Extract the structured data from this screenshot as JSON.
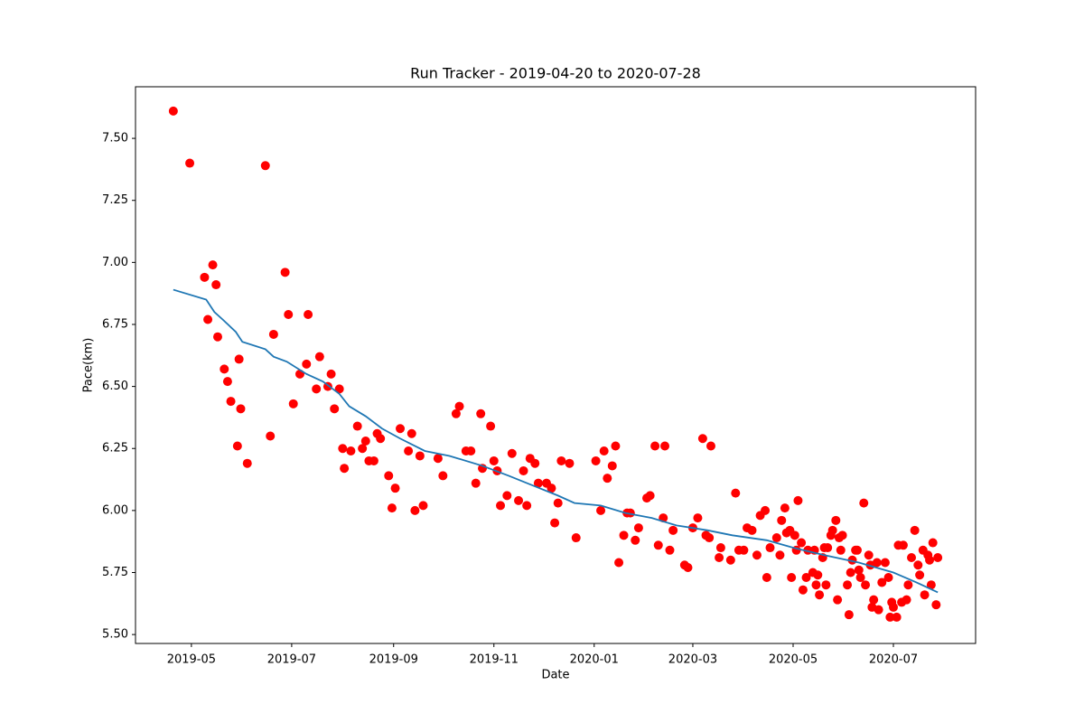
{
  "chart_data": {
    "type": "scatter",
    "title": "Run Tracker - 2019-04-20 to 2020-07-28",
    "x_label": "Date",
    "y_label": "Pace(km)",
    "xlim": [
      "2019-03-28",
      "2020-08-20"
    ],
    "xticks": [
      {
        "value": "2019-05-01",
        "label": "2019-05"
      },
      {
        "value": "2019-07-01",
        "label": "2019-07"
      },
      {
        "value": "2019-09-01",
        "label": "2019-09"
      },
      {
        "value": "2019-11-01",
        "label": "2019-11"
      },
      {
        "value": "2020-01-01",
        "label": "2020-01"
      },
      {
        "value": "2020-03-01",
        "label": "2020-03"
      },
      {
        "value": "2020-05-01",
        "label": "2020-05"
      },
      {
        "value": "2020-07-01",
        "label": "2020-07"
      }
    ],
    "ylim": [
      5.464,
      7.708
    ],
    "yticks": [
      {
        "value": 5.5,
        "label": "5.50"
      },
      {
        "value": 5.75,
        "label": "5.75"
      },
      {
        "value": 6.0,
        "label": "6.00"
      },
      {
        "value": 6.25,
        "label": "6.25"
      },
      {
        "value": 6.5,
        "label": "6.50"
      },
      {
        "value": 6.75,
        "label": "6.75"
      },
      {
        "value": 7.0,
        "label": "7.00"
      },
      {
        "value": 7.25,
        "label": "7.25"
      },
      {
        "value": 7.5,
        "label": "7.50"
      }
    ],
    "grid": false,
    "series": [
      {
        "type": "scatter",
        "color": "#ff0000",
        "x": [
          "2019-04-20",
          "2019-04-30",
          "2019-05-09",
          "2019-05-11",
          "2019-05-14",
          "2019-05-16",
          "2019-05-17",
          "2019-05-21",
          "2019-05-23",
          "2019-05-25",
          "2019-05-29",
          "2019-05-30",
          "2019-05-31",
          "2019-06-04",
          "2019-06-15",
          "2019-06-18",
          "2019-06-20",
          "2019-06-27",
          "2019-06-29",
          "2019-07-02",
          "2019-07-06",
          "2019-07-10",
          "2019-07-11",
          "2019-07-16",
          "2019-07-18",
          "2019-07-23",
          "2019-07-25",
          "2019-07-27",
          "2019-07-30",
          "2019-08-01",
          "2019-08-02",
          "2019-08-06",
          "2019-08-10",
          "2019-08-13",
          "2019-08-15",
          "2019-08-17",
          "2019-08-20",
          "2019-08-22",
          "2019-08-24",
          "2019-08-29",
          "2019-08-31",
          "2019-09-02",
          "2019-09-05",
          "2019-09-10",
          "2019-09-12",
          "2019-09-14",
          "2019-09-17",
          "2019-09-19",
          "2019-09-28",
          "2019-10-01",
          "2019-10-09",
          "2019-10-11",
          "2019-10-15",
          "2019-10-18",
          "2019-10-21",
          "2019-10-24",
          "2019-10-25",
          "2019-10-30",
          "2019-11-01",
          "2019-11-03",
          "2019-11-05",
          "2019-11-09",
          "2019-11-12",
          "2019-11-16",
          "2019-11-19",
          "2019-11-21",
          "2019-11-23",
          "2019-11-26",
          "2019-11-28",
          "2019-12-03",
          "2019-12-06",
          "2019-12-08",
          "2019-12-10",
          "2019-12-12",
          "2019-12-17",
          "2019-12-21",
          "2020-01-02",
          "2020-01-05",
          "2020-01-07",
          "2020-01-09",
          "2020-01-12",
          "2020-01-14",
          "2020-01-16",
          "2020-01-19",
          "2020-01-21",
          "2020-01-23",
          "2020-01-26",
          "2020-01-28",
          "2020-02-02",
          "2020-02-04",
          "2020-02-07",
          "2020-02-09",
          "2020-02-12",
          "2020-02-13",
          "2020-02-16",
          "2020-02-18",
          "2020-02-25",
          "2020-02-27",
          "2020-03-01",
          "2020-03-04",
          "2020-03-07",
          "2020-03-09",
          "2020-03-11",
          "2020-03-12",
          "2020-03-17",
          "2020-03-18",
          "2020-03-24",
          "2020-03-27",
          "2020-03-29",
          "2020-04-01",
          "2020-04-03",
          "2020-04-06",
          "2020-04-09",
          "2020-04-11",
          "2020-04-14",
          "2020-04-15",
          "2020-04-17",
          "2020-04-21",
          "2020-04-23",
          "2020-04-24",
          "2020-04-26",
          "2020-04-27",
          "2020-04-29",
          "2020-04-30",
          "2020-05-02",
          "2020-05-03",
          "2020-05-04",
          "2020-05-06",
          "2020-05-07",
          "2020-05-09",
          "2020-05-10",
          "2020-05-13",
          "2020-05-14",
          "2020-05-15",
          "2020-05-16",
          "2020-05-17",
          "2020-05-19",
          "2020-05-20",
          "2020-05-21",
          "2020-05-22",
          "2020-05-24",
          "2020-05-25",
          "2020-05-27",
          "2020-05-28",
          "2020-05-29",
          "2020-05-30",
          "2020-05-31",
          "2020-06-03",
          "2020-06-04",
          "2020-06-05",
          "2020-06-06",
          "2020-06-08",
          "2020-06-09",
          "2020-06-10",
          "2020-06-11",
          "2020-06-13",
          "2020-06-14",
          "2020-06-16",
          "2020-06-17",
          "2020-06-18",
          "2020-06-19",
          "2020-06-21",
          "2020-06-22",
          "2020-06-24",
          "2020-06-26",
          "2020-06-28",
          "2020-06-29",
          "2020-06-30",
          "2020-07-01",
          "2020-07-03",
          "2020-07-04",
          "2020-07-06",
          "2020-07-07",
          "2020-07-09",
          "2020-07-10",
          "2020-07-12",
          "2020-07-14",
          "2020-07-16",
          "2020-07-17",
          "2020-07-19",
          "2020-07-20",
          "2020-07-22",
          "2020-07-23",
          "2020-07-24",
          "2020-07-25",
          "2020-07-27",
          "2020-07-28"
        ],
        "values": [
          7.61,
          7.4,
          6.94,
          6.77,
          6.99,
          6.91,
          6.7,
          6.57,
          6.52,
          6.44,
          6.26,
          6.61,
          6.41,
          6.19,
          7.39,
          6.3,
          6.71,
          6.96,
          6.79,
          6.43,
          6.55,
          6.59,
          6.79,
          6.49,
          6.62,
          6.5,
          6.55,
          6.41,
          6.49,
          6.25,
          6.17,
          6.24,
          6.34,
          6.25,
          6.28,
          6.2,
          6.2,
          6.31,
          6.29,
          6.14,
          6.01,
          6.09,
          6.33,
          6.24,
          6.31,
          6.0,
          6.22,
          6.02,
          6.21,
          6.14,
          6.39,
          6.42,
          6.24,
          6.24,
          6.11,
          6.39,
          6.17,
          6.34,
          6.2,
          6.16,
          6.02,
          6.06,
          6.23,
          6.04,
          6.16,
          6.02,
          6.21,
          6.19,
          6.11,
          6.11,
          6.09,
          5.95,
          6.03,
          6.2,
          6.19,
          5.89,
          6.2,
          6.0,
          6.24,
          6.13,
          6.18,
          6.26,
          5.79,
          5.9,
          5.99,
          5.99,
          5.88,
          5.93,
          6.05,
          6.06,
          6.26,
          5.86,
          5.97,
          6.26,
          5.84,
          5.92,
          5.78,
          5.77,
          5.93,
          5.97,
          6.29,
          5.9,
          5.89,
          6.26,
          5.81,
          5.85,
          5.8,
          6.07,
          5.84,
          5.84,
          5.93,
          5.92,
          5.82,
          5.98,
          6.0,
          5.73,
          5.85,
          5.89,
          5.82,
          5.96,
          6.01,
          5.91,
          5.92,
          5.73,
          5.9,
          5.84,
          6.04,
          5.87,
          5.68,
          5.73,
          5.84,
          5.75,
          5.84,
          5.7,
          5.74,
          5.66,
          5.81,
          5.85,
          5.7,
          5.85,
          5.9,
          5.92,
          5.96,
          5.64,
          5.89,
          5.84,
          5.9,
          5.7,
          5.58,
          5.75,
          5.8,
          5.84,
          5.84,
          5.76,
          5.73,
          6.03,
          5.7,
          5.82,
          5.78,
          5.61,
          5.64,
          5.79,
          5.6,
          5.71,
          5.79,
          5.73,
          5.57,
          5.63,
          5.61,
          5.57,
          5.86,
          5.63,
          5.86,
          5.64,
          5.7,
          5.81,
          5.92,
          5.78,
          5.74,
          5.84,
          5.66,
          5.82,
          5.8,
          5.7,
          5.87,
          5.62,
          5.81
        ]
      },
      {
        "type": "line",
        "color": "#1f77b4",
        "x": [
          "2019-04-20",
          "2019-05-10",
          "2019-05-15",
          "2019-05-20",
          "2019-05-28",
          "2019-06-01",
          "2019-06-15",
          "2019-06-20",
          "2019-06-28",
          "2019-07-10",
          "2019-07-20",
          "2019-07-30",
          "2019-08-05",
          "2019-08-15",
          "2019-08-25",
          "2019-09-05",
          "2019-09-20",
          "2019-10-05",
          "2019-10-25",
          "2019-11-10",
          "2019-11-25",
          "2019-12-10",
          "2019-12-20",
          "2020-01-05",
          "2020-01-20",
          "2020-02-05",
          "2020-02-20",
          "2020-03-10",
          "2020-03-25",
          "2020-04-15",
          "2020-05-01",
          "2020-05-20",
          "2020-06-10",
          "2020-07-01",
          "2020-07-15",
          "2020-07-28"
        ],
        "values": [
          6.89,
          6.85,
          6.8,
          6.77,
          6.72,
          6.68,
          6.65,
          6.62,
          6.6,
          6.55,
          6.52,
          6.47,
          6.42,
          6.38,
          6.33,
          6.29,
          6.24,
          6.22,
          6.18,
          6.14,
          6.1,
          6.06,
          6.03,
          6.02,
          5.99,
          5.97,
          5.94,
          5.92,
          5.9,
          5.88,
          5.85,
          5.82,
          5.79,
          5.75,
          5.71,
          5.67
        ]
      }
    ]
  }
}
